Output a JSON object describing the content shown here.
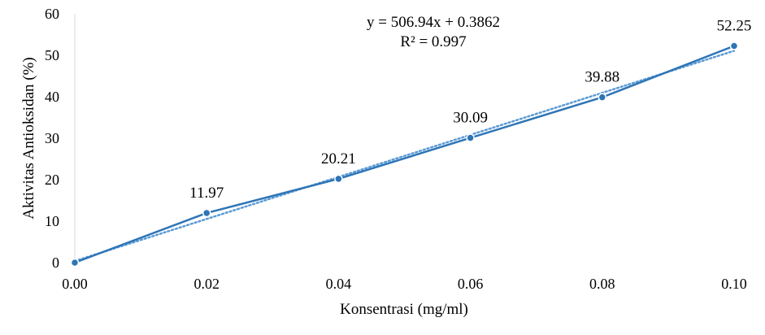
{
  "chart_data": {
    "type": "line",
    "x": [
      0.0,
      0.02,
      0.04,
      0.06,
      0.08,
      0.1
    ],
    "series": [
      {
        "values": [
          0,
          11.97,
          20.21,
          30.09,
          39.88,
          52.25
        ],
        "data_labels": [
          "",
          "11.97",
          "20.21",
          "30.09",
          "39.88",
          "52.25"
        ],
        "color": "#2E75B6"
      }
    ],
    "trendline": {
      "type": "linear",
      "slope": 506.94,
      "intercept": 0.3862,
      "equation": "y = 506.94x + 0.3862",
      "r_squared_label": "R² = 0.997",
      "style": "dotted",
      "color": "#5B9BD5"
    },
    "xlabel": "Konsentrasi (mg/ml)",
    "ylabel": "Aktivitas Antioksidan (%)",
    "xlim": [
      0,
      0.1
    ],
    "ylim": [
      0,
      60
    ],
    "x_ticks": [
      "0.00",
      "0.02",
      "0.04",
      "0.06",
      "0.08",
      "0.10"
    ],
    "y_ticks": [
      "0",
      "10",
      "20",
      "30",
      "40",
      "50",
      "60"
    ],
    "grid": false,
    "legend": "none"
  }
}
